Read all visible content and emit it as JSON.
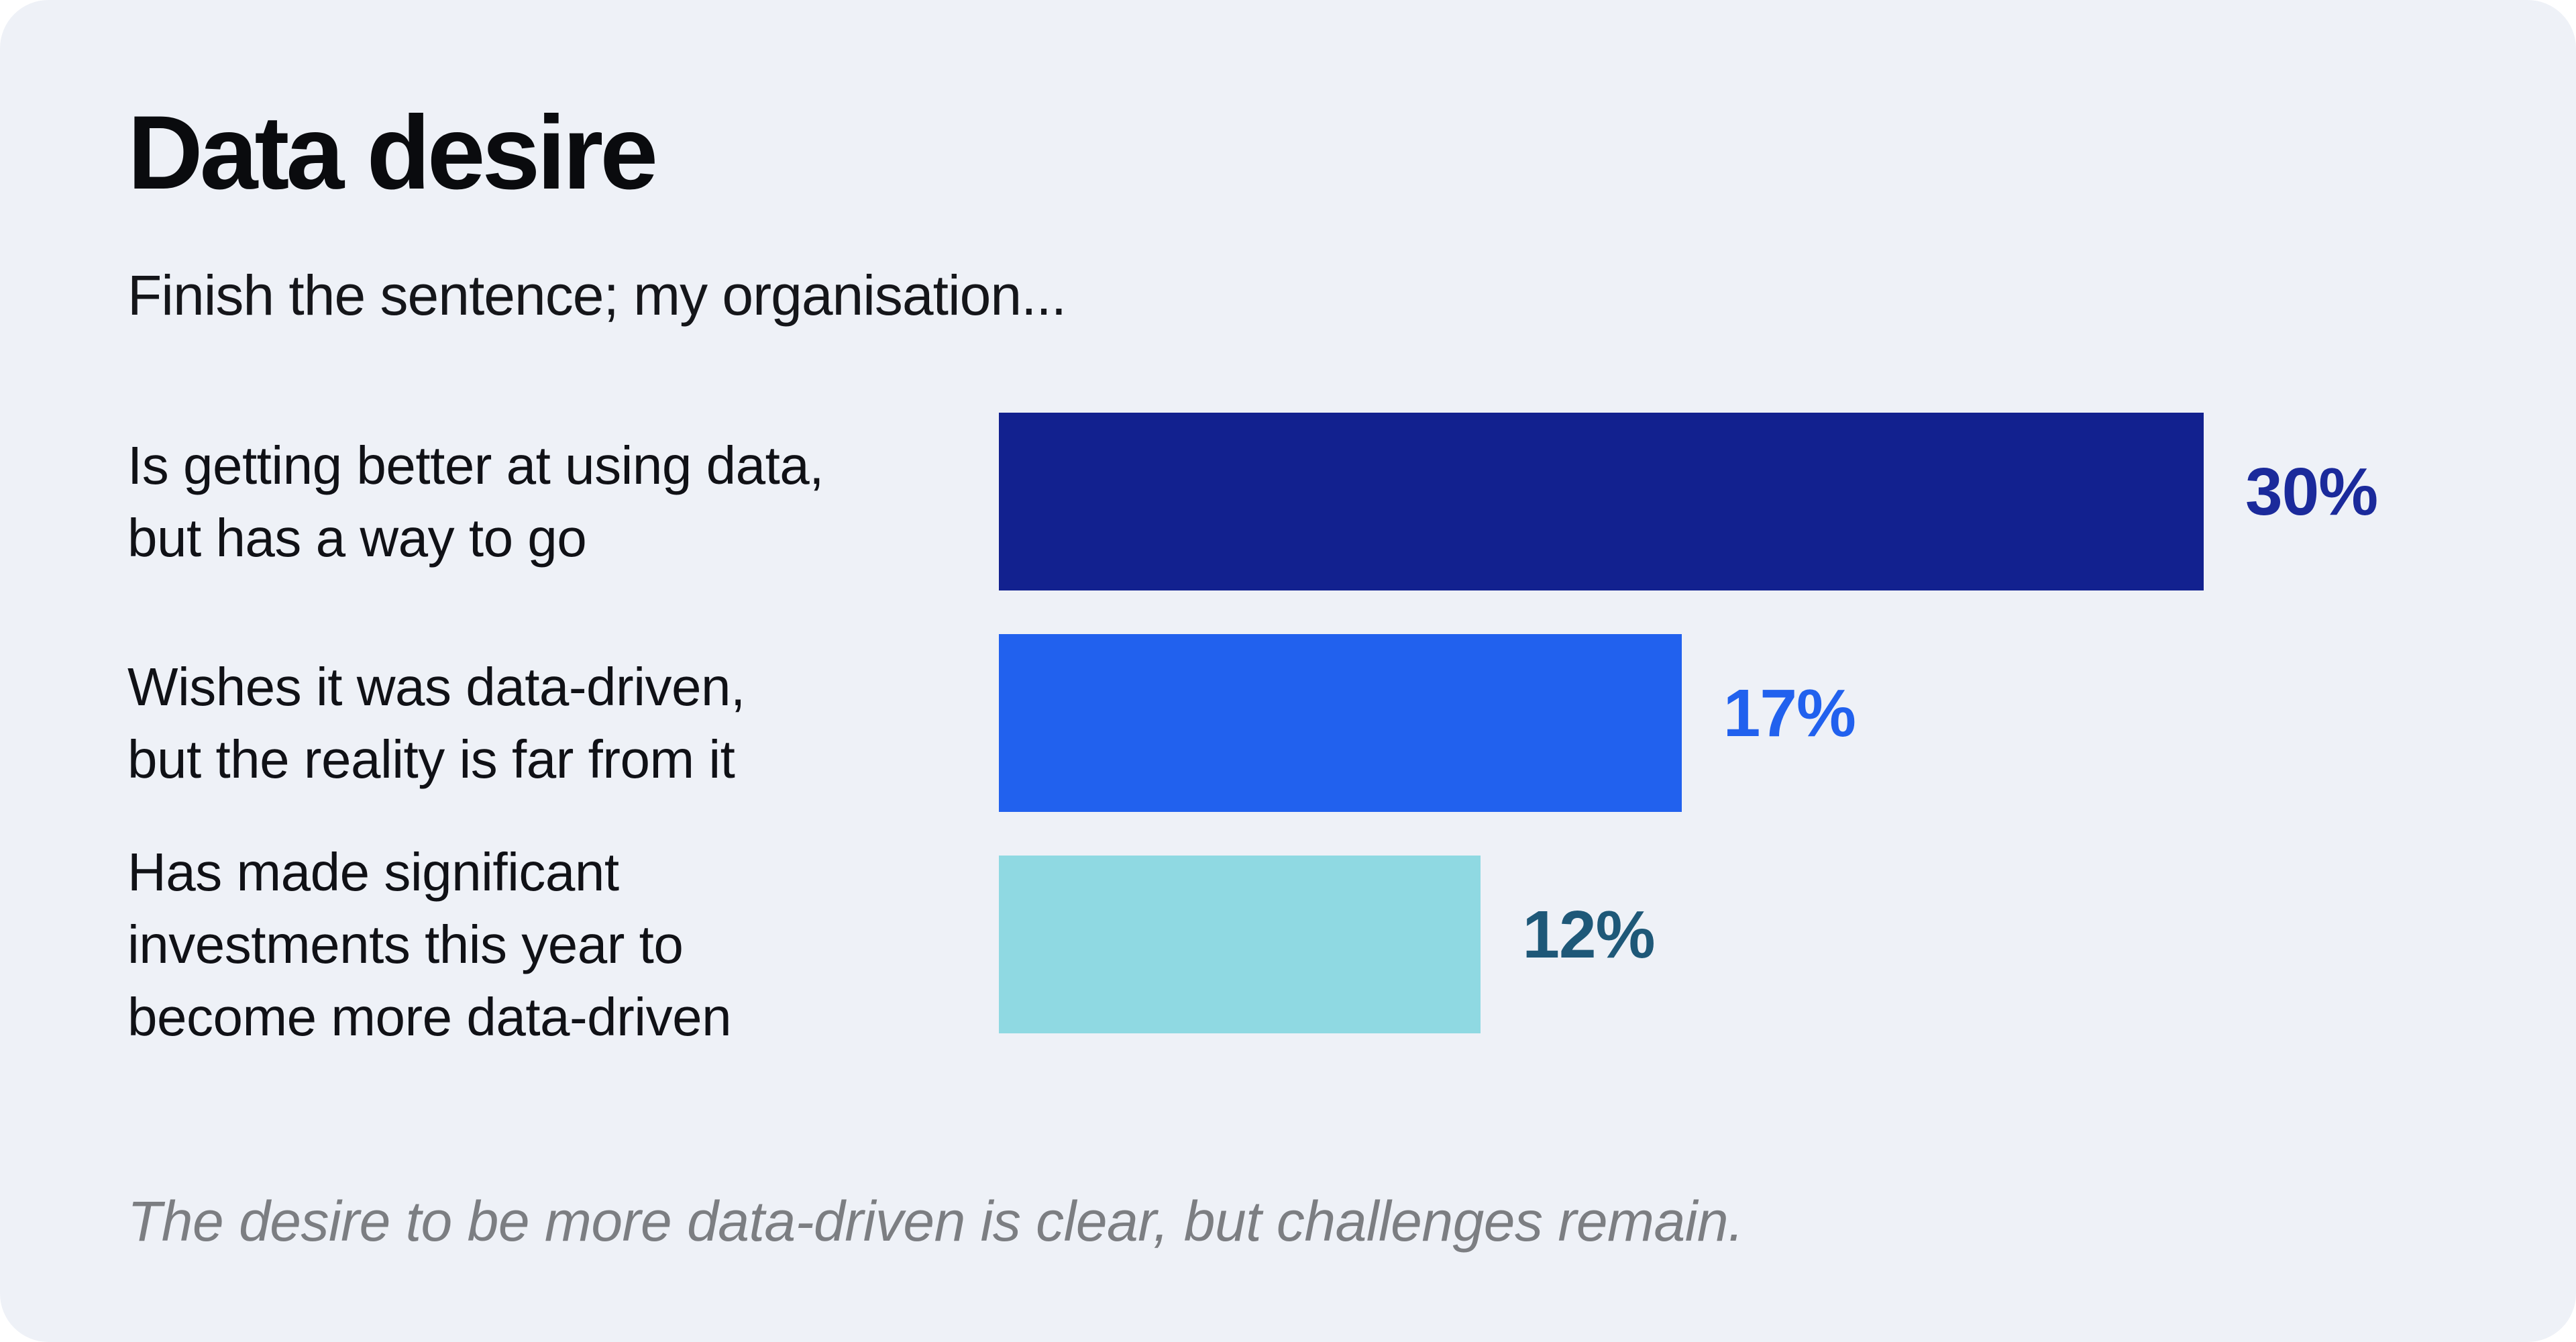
{
  "colors": {
    "page_background": "#FFFFFF",
    "panel_background": "#EEF1F7",
    "title_text": "#0A0B0E",
    "body_text": "#15161A",
    "footnote_text": "#7C7E82"
  },
  "chart_data": {
    "type": "bar",
    "orientation": "horizontal",
    "title": "Data desire",
    "subtitle": "Finish the sentence; my organisation...",
    "value_unit": "%",
    "xlim": [
      0,
      30
    ],
    "grid": false,
    "legend": false,
    "categories": [
      "Is getting better at using data, but has a way to go",
      "Wishes it was data-driven, but the reality is far from it",
      "Has made significant investments this year to become more data-driven"
    ],
    "values": [
      30,
      17,
      12
    ],
    "rows": [
      {
        "label": "Is getting better at using data,\nbut has a way to go",
        "value": 30,
        "value_label": "30%",
        "bar_color": "#12218F",
        "value_label_color": "#1B2A9B"
      },
      {
        "label": "Wishes it was data-driven,\nbut the reality is far from it",
        "value": 17,
        "value_label": "17%",
        "bar_color": "#2161EE",
        "value_label_color": "#2161EE"
      },
      {
        "label": "Has made significant\ninvestments this year to\nbecome more data-driven",
        "value": 12,
        "value_label": "12%",
        "bar_color": "#8FD9E2",
        "value_label_color": "#1E5878"
      }
    ],
    "footnote": "The desire to be more data-driven is clear, but challenges remain."
  }
}
